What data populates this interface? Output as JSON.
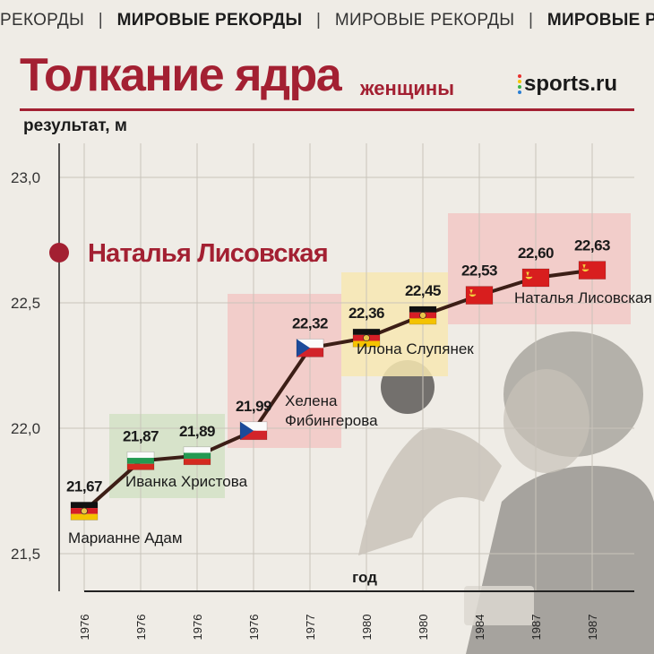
{
  "ticker": {
    "items": [
      {
        "text": "РЕКОРДЫ",
        "bold": false
      },
      {
        "text": "|",
        "bold": false
      },
      {
        "text": "МИРОВЫЕ РЕКОРДЫ",
        "bold": true
      },
      {
        "text": "|",
        "bold": false
      },
      {
        "text": "МИРОВЫЕ РЕКОРДЫ",
        "bold": false
      },
      {
        "text": "|",
        "bold": false
      },
      {
        "text": "МИРОВЫЕ РЕКОРДЫ",
        "bold": true
      }
    ]
  },
  "header": {
    "title": "Толкание ядра",
    "subtitle": "женщины",
    "logo_text": "sports.ru",
    "logo_dot_colors": [
      "#e8312f",
      "#f5c400",
      "#3ab54a",
      "#2a7fd4"
    ]
  },
  "colors": {
    "accent": "#a32032",
    "line": "#3c1e16",
    "grid": "#c9c4bb",
    "axis": "#222222",
    "highlight_red": "#f2c8c4",
    "highlight_green": "#d2e2c4",
    "highlight_yellow": "#f7e7b2"
  },
  "chart_data": {
    "type": "line",
    "ylabel": "результат, м",
    "xlabel": "год",
    "ylim": [
      21.4,
      23.1
    ],
    "yticks": [
      "21,5",
      "22,0",
      "22,5",
      "23,0"
    ],
    "ytick_values": [
      21.5,
      22.0,
      22.5,
      23.0
    ],
    "x": [
      "1976",
      "1976",
      "1976",
      "1976",
      "1977",
      "1980",
      "1980",
      "1984",
      "1987",
      "1987"
    ],
    "values": [
      21.67,
      21.87,
      21.89,
      21.99,
      22.32,
      22.36,
      22.45,
      22.53,
      22.6,
      22.63
    ],
    "value_labels": [
      "21,67",
      "21,87",
      "21,89",
      "21,99",
      "22,32",
      "22,36",
      "22,45",
      "22,53",
      "22,60",
      "22,63"
    ],
    "flags": [
      "gdr",
      "bul",
      "bul",
      "cze",
      "cze",
      "gdr",
      "gdr",
      "ussr",
      "ussr",
      "ussr"
    ],
    "athletes": [
      {
        "label": "Марианне Адам",
        "points": [
          0
        ]
      },
      {
        "label": "Иванка Христова",
        "points": [
          1,
          2
        ]
      },
      {
        "label": "Хелена Фибингерова",
        "points": [
          3,
          4
        ]
      },
      {
        "label": "Илона Слупянек",
        "points": [
          5,
          6
        ]
      },
      {
        "label": "Наталья Лисовская",
        "points": [
          7,
          8,
          9
        ]
      }
    ],
    "highlight_marker_label": "Наталья Лисовская",
    "highlight_marker_value": 22.7,
    "grid": true
  }
}
